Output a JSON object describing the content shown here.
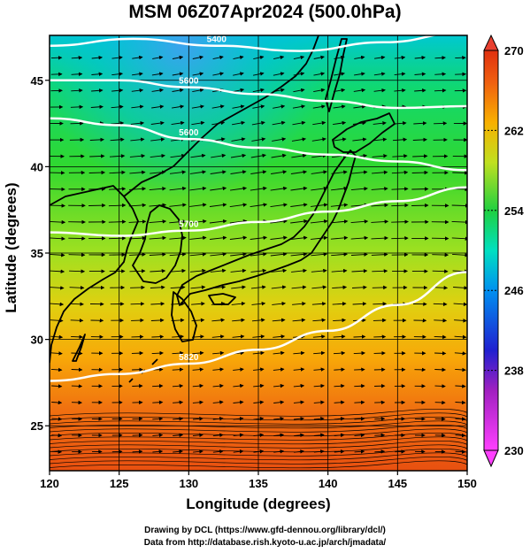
{
  "title": "MSM 06Z07Apr2024 (500.0hPa)",
  "xlabel": "Longitude (degrees)",
  "ylabel": "Latitude  (degrees)",
  "credits": [
    "Drawing by DCL (https://www.gfd-dennou.org/library/dcl/)",
    "Data from http://database.rish.kyoto-u.ac.jp/arch/jmadata/"
  ],
  "map": {
    "projection": "equirectangular",
    "lon_range": [
      120,
      150
    ],
    "lat_range": [
      22.4,
      47.6
    ],
    "lon_ticks": [
      120,
      125,
      130,
      135,
      140,
      145,
      150
    ],
    "lat_ticks": [
      25,
      30,
      35,
      40,
      45
    ],
    "grid": true,
    "field": "temperature (shaded)",
    "vectors": "wind streamlines/arrows, predominantly westerly",
    "contours": [
      {
        "label": "5400",
        "lats": [
          47.0,
          47.4,
          47.0,
          46.7,
          47.2,
          47.8
        ]
      },
      {
        "label": "5600",
        "lats": [
          45.0,
          45.0,
          44.6,
          44.2,
          43.8,
          43.4,
          43.5
        ]
      },
      {
        "label": "5600",
        "lats": [
          42.8,
          42.4,
          41.6,
          41.1,
          40.7,
          40.3,
          39.8
        ]
      },
      {
        "label": "5700",
        "lats": [
          36.2,
          36.0,
          36.3,
          36.8,
          37.4,
          38.0,
          38.8
        ]
      },
      {
        "label": "5820",
        "lats": [
          27.6,
          28.0,
          28.6,
          29.4,
          30.5,
          32.0,
          33.9
        ]
      }
    ]
  },
  "colorbar": {
    "min": 230,
    "max": 270,
    "labels": [
      "270",
      "262",
      "254",
      "246",
      "238",
      "230"
    ],
    "colors": [
      "#ff40ff",
      "#3020d0",
      "#00a8f0",
      "#00e0a0",
      "#20d040",
      "#c0e020",
      "#f8b000",
      "#f06010",
      "#e03010"
    ]
  }
}
